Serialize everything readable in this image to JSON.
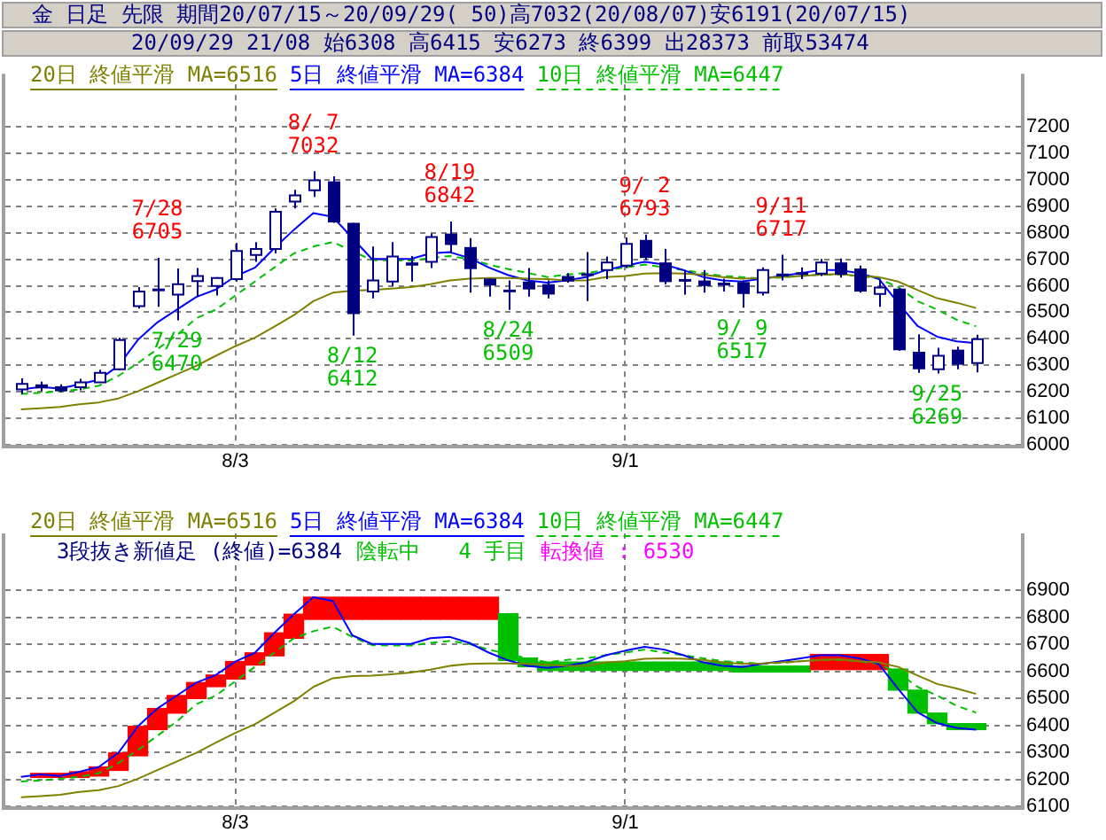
{
  "chart_data": [
    {
      "type": "candlestick",
      "title": "金 日足 先限 期間20/07/15～20/09/29( 50)高7032(20/08/07)安6191(20/07/15)",
      "subtitle": "20/09/29 21/08 始6308 高6415 安6273 終6399 出28373 前取53474",
      "categories": [
        null,
        null,
        null,
        null,
        null,
        null,
        null,
        null,
        null,
        null,
        null,
        "8/3",
        null,
        null,
        null,
        null,
        null,
        null,
        null,
        null,
        null,
        null,
        null,
        null,
        null,
        null,
        null,
        null,
        null,
        null,
        null,
        "9/1",
        null,
        null,
        null,
        null,
        null,
        null,
        null,
        null,
        null,
        null,
        null,
        null,
        null,
        null,
        null,
        null,
        null,
        null
      ],
      "ohlc": [
        [
          6209,
          6251,
          6191,
          6230
        ],
        [
          6228,
          6238,
          6202,
          6213
        ],
        [
          6221,
          6228,
          6198,
          6202
        ],
        [
          6217,
          6249,
          6206,
          6236
        ],
        [
          6236,
          6283,
          6234,
          6272
        ],
        [
          6285,
          6404,
          6281,
          6395
        ],
        [
          6523,
          6595,
          6514,
          6578
        ],
        [
          6589,
          6705,
          6521,
          6580
        ],
        [
          6567,
          6665,
          6470,
          6606
        ],
        [
          6618,
          6667,
          6559,
          6637
        ],
        [
          6599,
          6633,
          6563,
          6629
        ],
        [
          6625,
          6761,
          6616,
          6731
        ],
        [
          6716,
          6765,
          6690,
          6739
        ],
        [
          6739,
          6892,
          6722,
          6879
        ],
        [
          6918,
          6962,
          6892,
          6941
        ],
        [
          6960,
          7032,
          6935,
          6998
        ],
        [
          6994,
          7013,
          6837,
          6839
        ],
        [
          6837,
          6837,
          6412,
          6493
        ],
        [
          6578,
          6748,
          6552,
          6620
        ],
        [
          6616,
          6765,
          6599,
          6710
        ],
        [
          6688,
          6712,
          6616,
          6676
        ],
        [
          6690,
          6797,
          6667,
          6784
        ],
        [
          6797,
          6842,
          6722,
          6754
        ],
        [
          6746,
          6780,
          6574,
          6663
        ],
        [
          6627,
          6627,
          6559,
          6601
        ],
        [
          6584,
          6620,
          6509,
          6577
        ],
        [
          6616,
          6667,
          6559,
          6586
        ],
        [
          6606,
          6620,
          6552,
          6567
        ],
        [
          6637,
          6648,
          6612,
          6616
        ],
        [
          6646,
          6727,
          6542,
          6638
        ],
        [
          6659,
          6710,
          6625,
          6688
        ],
        [
          6676,
          6782,
          6667,
          6758
        ],
        [
          6773,
          6793,
          6697,
          6705
        ],
        [
          6688,
          6739,
          6606,
          6614
        ],
        [
          6623,
          6659,
          6567,
          6618
        ],
        [
          6620,
          6659,
          6574,
          6599
        ],
        [
          6612,
          6627,
          6578,
          6601
        ],
        [
          6614,
          6620,
          6517,
          6569
        ],
        [
          6574,
          6669,
          6563,
          6659
        ],
        [
          6646,
          6717,
          6620,
          6635
        ],
        [
          6648,
          6669,
          6625,
          6644
        ],
        [
          6646,
          6701,
          6637,
          6688
        ],
        [
          6688,
          6703,
          6631,
          6642
        ],
        [
          6665,
          6676,
          6574,
          6578
        ],
        [
          6569,
          6620,
          6521,
          6593
        ],
        [
          6589,
          6592,
          6355,
          6357
        ],
        [
          6351,
          6417,
          6272,
          6285
        ],
        [
          6285,
          6366,
          6269,
          6336
        ],
        [
          6359,
          6370,
          6285,
          6302
        ],
        [
          6308,
          6415,
          6273,
          6399
        ]
      ],
      "color": "#000080",
      "series": [
        {
          "name": "20日 終値平滑 MA=6516",
          "type": "line",
          "color": "#808000",
          "values": [
            6134,
            6138,
            6143,
            6153,
            6160,
            6175,
            6202,
            6234,
            6266,
            6298,
            6336,
            6372,
            6404,
            6446,
            6489,
            6542,
            6574,
            6582,
            6584,
            6589,
            6595,
            6606,
            6620,
            6627,
            6629,
            6629,
            6627,
            6625,
            6620,
            6620,
            6633,
            6637,
            6646,
            6648,
            6646,
            6642,
            6633,
            6627,
            6629,
            6633,
            6637,
            6642,
            6644,
            6637,
            6633,
            6616,
            6584,
            6553,
            6536,
            6516
          ]
        },
        {
          "name": "5日 終値平滑 MA=6384",
          "type": "line",
          "color": "#0000ff",
          "values": [
            6209,
            6218,
            6212,
            6228,
            6246,
            6298,
            6396,
            6462,
            6510,
            6558,
            6586,
            6636,
            6668,
            6742,
            6811,
            6874,
            6860,
            null,
            6701,
            6701,
            6701,
            6722,
            6727,
            6705,
            6669,
            6640,
            6620,
            6612,
            6620,
            6633,
            6659,
            6676,
            6690,
            6680,
            6659,
            6633,
            6620,
            6616,
            6627,
            6637,
            6648,
            6659,
            6659,
            6648,
            6627,
            6535,
            6448,
            6408,
            6390,
            6384
          ]
        },
        {
          "name": "10日 終値平滑 MA=6447",
          "type": "line",
          "color": "#00c000",
          "line_style": "dashed",
          "values": [
            6192,
            6196,
            6202,
            6209,
            6223,
            6260,
            6308,
            6361,
            6414,
            6478,
            6510,
            6563,
            6616,
            6669,
            6722,
            6748,
            6765,
            null,
            6697,
            6695,
            6695,
            6705,
            6712,
            6701,
            6680,
            6663,
            6648,
            6633,
            6642,
            6648,
            6659,
            6669,
            6680,
            6669,
            6659,
            6648,
            6637,
            6633,
            6627,
            6631,
            6637,
            6642,
            6642,
            6637,
            6627,
            6595,
            6542,
            6510,
            6472,
            6447
          ]
        }
      ],
      "ylim": [
        6000,
        7400
      ],
      "yticks": [
        6000,
        6100,
        6200,
        6300,
        6400,
        6500,
        6600,
        6700,
        6800,
        6900,
        7000,
        7100,
        7200
      ],
      "grid": true,
      "legend": "top left",
      "marker": "none",
      "annotations": [
        {
          "text": "7/28\n6705",
          "y": 6705
        },
        {
          "text": "7/29\n6470",
          "y": 6470
        },
        {
          "text": "8/ 7\n7032",
          "y": 7032
        },
        {
          "text": "8/12\n6412",
          "y": 6412
        },
        {
          "text": "8/19\n6842",
          "y": 6842
        },
        {
          "text": "8/24\n6509",
          "y": 6509
        },
        {
          "text": "9/ 2\n6793",
          "y": 6793
        },
        {
          "text": "9/ 9\n6517",
          "y": 6517
        },
        {
          "text": "9/11\n6717",
          "y": 6717
        },
        {
          "text": "9/25\n6269",
          "y": 6269
        }
      ]
    },
    {
      "type": "bar",
      "categories": [
        null,
        null,
        null,
        null,
        null,
        null,
        null,
        null,
        null,
        null,
        null,
        "8/3",
        null,
        null,
        null,
        null,
        null,
        null,
        null,
        null,
        null,
        null,
        null,
        null,
        null,
        null,
        null,
        null,
        null,
        null,
        null,
        "9/1",
        null,
        null,
        null,
        null,
        null,
        null,
        null,
        null,
        null,
        null,
        null,
        null,
        null,
        null,
        null,
        null,
        null,
        null
      ],
      "series": [
        {
          "type": "bar",
          "base": [
            null,
            6207,
            6207,
            6207,
            6212,
            6233,
            6287,
            6384,
            6445,
            6499,
            6543,
            6571,
            6623,
            6657,
            6722,
            6792,
            6792,
            6792,
            6792,
            6792,
            6792,
            6792,
            6792,
            6792,
            6792,
            6640,
            6617,
            6603,
            6603,
            6603,
            6603,
            6603,
            6603,
            6603,
            6603,
            6603,
            6603,
            6597,
            6597,
            6597,
            6597,
            6606,
            6606,
            6606,
            6606,
            6530,
            6445,
            6406,
            6384,
            6384
          ],
          "values": [
            null,
            15,
            15,
            21,
            34,
            65,
            109,
            78,
            65,
            59,
            43,
            65,
            45,
            85,
            89,
            82,
            82,
            82,
            82,
            82,
            82,
            82,
            82,
            82,
            82,
            173,
            32,
            31,
            31,
            31,
            31,
            31,
            31,
            31,
            31,
            31,
            31,
            22,
            22,
            22,
            22,
            56,
            56,
            56,
            56,
            78,
            85,
            39,
            22,
            22
          ],
          "colors": [
            "#ff0000",
            "#ff0000",
            "#ff0000",
            "#ff0000",
            "#ff0000",
            "#ff0000",
            "#ff0000",
            "#ff0000",
            "#ff0000",
            "#ff0000",
            "#ff0000",
            "#ff0000",
            "#ff0000",
            "#ff0000",
            "#ff0000",
            "#ff0000",
            "#ff0000",
            "#ff0000",
            "#ff0000",
            "#ff0000",
            "#ff0000",
            "#ff0000",
            "#ff0000",
            "#ff0000",
            "#ff0000",
            "#00c000",
            "#00c000",
            "#00c000",
            "#00c000",
            "#00c000",
            "#00c000",
            "#00c000",
            "#00c000",
            "#00c000",
            "#00c000",
            "#00c000",
            "#00c000",
            "#00c000",
            "#00c000",
            "#00c000",
            "#00c000",
            "#ff0000",
            "#ff0000",
            "#ff0000",
            "#ff0000",
            "#00c000",
            "#00c000",
            "#00c000",
            "#00c000",
            "#00c000"
          ]
        },
        {
          "name": "20日 終値平滑 MA=6516",
          "type": "line",
          "color": "#808000",
          "values": [
            6134,
            6138,
            6143,
            6153,
            6160,
            6175,
            6202,
            6234,
            6266,
            6298,
            6336,
            6372,
            6404,
            6446,
            6489,
            6542,
            6574,
            6582,
            6584,
            6589,
            6595,
            6606,
            6620,
            6627,
            6629,
            6629,
            6627,
            6625,
            6620,
            6620,
            6633,
            6637,
            6646,
            6648,
            6646,
            6642,
            6633,
            6627,
            6629,
            6633,
            6637,
            6642,
            6644,
            6637,
            6633,
            6616,
            6584,
            6553,
            6536,
            6516
          ]
        },
        {
          "name": "5日 終値平滑 MA=6384",
          "type": "line",
          "color": "#0000ff",
          "values": [
            6209,
            6218,
            6212,
            6228,
            6246,
            6298,
            6396,
            6462,
            6510,
            6558,
            6586,
            6636,
            6668,
            6742,
            6811,
            6874,
            6860,
            6733,
            6701,
            6701,
            6701,
            6722,
            6727,
            6705,
            6669,
            6640,
            6620,
            6612,
            6620,
            6633,
            6659,
            6676,
            6690,
            6680,
            6659,
            6633,
            6620,
            6616,
            6627,
            6637,
            6648,
            6659,
            6659,
            6648,
            6627,
            6535,
            6448,
            6408,
            6390,
            6384
          ]
        },
        {
          "name": "10日 終値平滑 MA=6447",
          "type": "line",
          "color": "#00c000",
          "line_style": "dashed",
          "values": [
            6192,
            6196,
            6202,
            6209,
            6223,
            6260,
            6308,
            6361,
            6414,
            6478,
            6510,
            6563,
            6616,
            6669,
            6722,
            6748,
            6765,
            6727,
            6697,
            6695,
            6695,
            6705,
            6712,
            6701,
            6680,
            6663,
            6648,
            6633,
            6642,
            6648,
            6659,
            6669,
            6680,
            6669,
            6659,
            6648,
            6637,
            6633,
            6627,
            6631,
            6637,
            6642,
            6642,
            6637,
            6627,
            6595,
            6542,
            6510,
            6472,
            6447
          ]
        }
      ],
      "ylim": [
        6100,
        7110
      ],
      "yticks": [
        6100,
        6200,
        6300,
        6400,
        6500,
        6600,
        6700,
        6800,
        6900
      ],
      "grid": true,
      "legend": "top left",
      "marker": "none",
      "annotations": [
        "3段抜き新値足 (終値)=6384",
        "陰転中   4 手目",
        "転換値 : 6530"
      ]
    }
  ]
}
